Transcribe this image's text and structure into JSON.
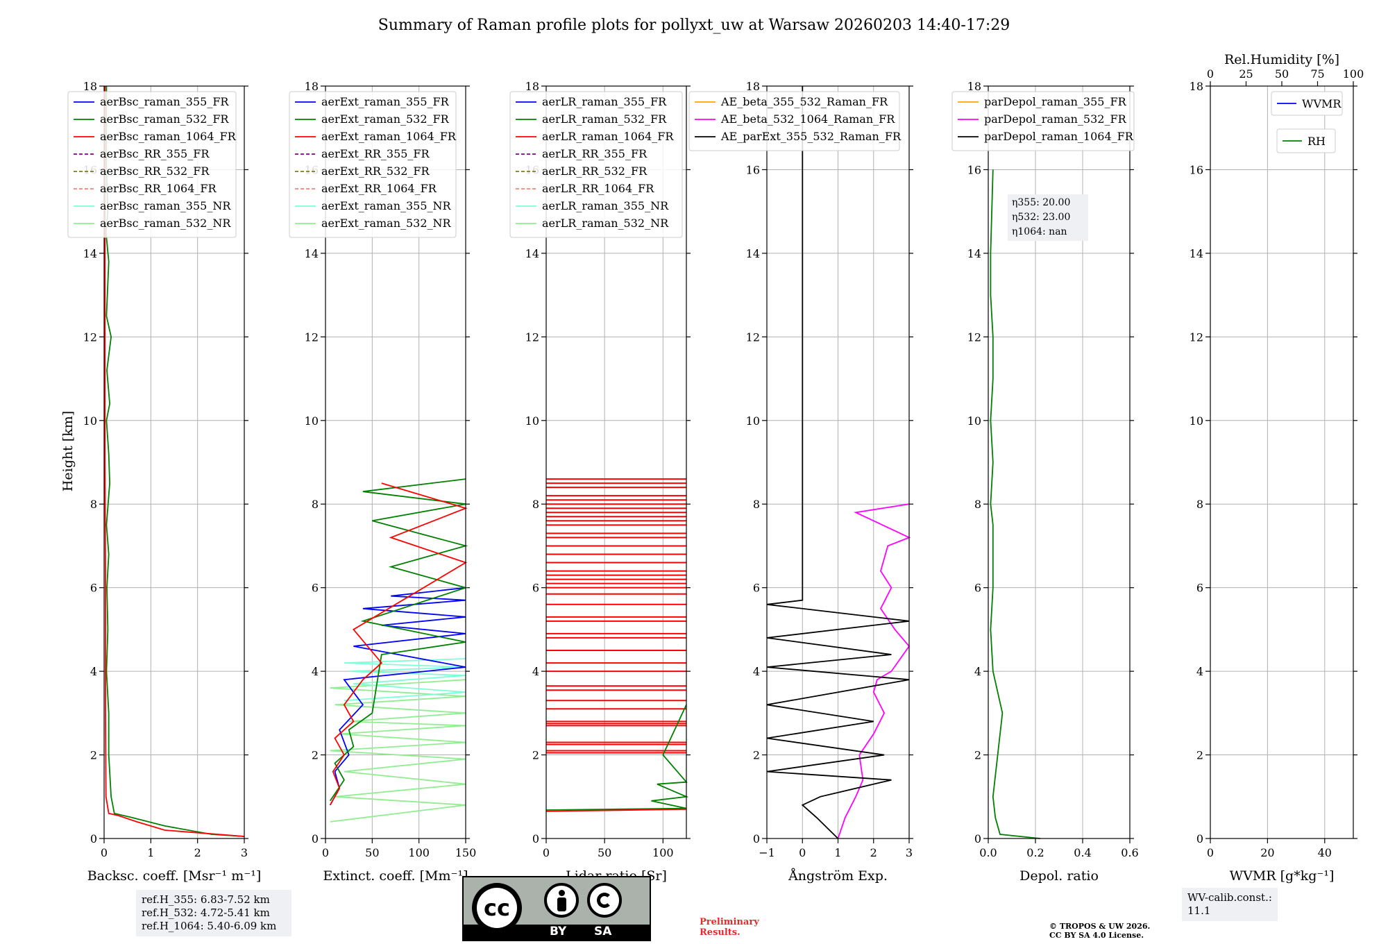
{
  "figure": {
    "title": "Summary of Raman profile plots for pollyxt_uw at Warsaw 20260203 14:40-17:29",
    "ylabel": "Height [km]",
    "height_ticks": [
      "0",
      "2",
      "4",
      "6",
      "8",
      "10",
      "12",
      "14",
      "16",
      "18"
    ]
  },
  "colors": {
    "blue": "#0000ff",
    "green": "#008000",
    "red": "#ff0000",
    "purple": "#800080",
    "olive": "#808000",
    "salmon": "#fa8072",
    "cyan": "#7fffd4",
    "lightgreen": "#90ee90",
    "orange": "#ffa500",
    "magenta": "#ff00ff",
    "black": "#000000",
    "darkgreen": "#006400"
  },
  "chart_data": [
    {
      "id": "backscatter",
      "type": "line",
      "xlabel": "Backsc. coeff. [Msr⁻¹ m⁻¹]",
      "xlim": [
        0,
        3
      ],
      "ylim": [
        0,
        18
      ],
      "xticks": [
        "0",
        "1",
        "2",
        "3"
      ],
      "legend": [
        "aerBsc_raman_355_FR",
        "aerBsc_raman_532_FR",
        "aerBsc_raman_1064_FR",
        "aerBsc_RR_355_FR",
        "aerBsc_RR_532_FR",
        "aerBsc_RR_1064_FR",
        "aerBsc_raman_355_NR",
        "aerBsc_raman_532_NR"
      ],
      "series": [
        {
          "name": "aerBsc_raman_532_FR",
          "color": "green",
          "x": [
            3.0,
            2.3,
            1.3,
            0.6,
            0.22,
            0.15,
            0.1,
            0.1,
            0.05,
            0.08,
            0.06,
            0.1,
            0.05,
            0.12,
            0.1,
            0.05,
            0.12,
            0.06,
            0.15,
            0.05,
            0.1,
            0.04,
            0.08,
            0.05,
            0.05
          ],
          "y": [
            0.05,
            0.1,
            0.3,
            0.5,
            0.6,
            1.0,
            2.0,
            3.0,
            4.0,
            5.0,
            6.0,
            6.8,
            7.5,
            8.5,
            9.2,
            10.0,
            10.4,
            11.2,
            12.0,
            12.5,
            13.8,
            14.5,
            15.0,
            16.0,
            18.0
          ]
        },
        {
          "name": "aerBsc_raman_1064_FR",
          "color": "red",
          "x": [
            3.0,
            1.3,
            0.7,
            0.3,
            0.1,
            0.04,
            0.03,
            0.03,
            0.02,
            0.02,
            0.02,
            0.02,
            0.02
          ],
          "y": [
            0.05,
            0.2,
            0.4,
            0.55,
            0.6,
            1.0,
            3.0,
            6.0,
            9.0,
            12.0,
            14.0,
            16.0,
            18.0
          ]
        }
      ],
      "annotation": [
        "ref.H_355: 6.83-7.52 km",
        "ref.H_532: 4.72-5.41 km",
        "ref.H_1064: 5.40-6.09 km"
      ]
    },
    {
      "id": "extinction",
      "type": "line",
      "xlabel": "Extinct. coeff. [Mm⁻¹]",
      "xlim": [
        0,
        150
      ],
      "ylim": [
        0,
        18
      ],
      "xticks": [
        "0",
        "50",
        "100",
        "150"
      ],
      "legend": [
        "aerExt_raman_355_FR",
        "aerExt_raman_532_FR",
        "aerExt_raman_1064_FR",
        "aerExt_RR_355_FR",
        "aerExt_RR_532_FR",
        "aerExt_RR_1064_FR",
        "aerExt_raman_355_NR",
        "aerExt_raman_532_NR"
      ],
      "series": [
        {
          "name": "aerExt_raman_532_NR",
          "color": "lightgreen",
          "x": [
            5,
            150,
            10,
            150,
            20,
            150,
            5,
            150,
            15,
            150,
            25,
            150,
            10,
            150,
            5,
            150
          ],
          "y": [
            0.4,
            0.8,
            1.0,
            1.3,
            1.6,
            1.9,
            2.1,
            2.3,
            2.5,
            2.7,
            2.8,
            3.0,
            3.2,
            3.4,
            3.6,
            3.8
          ]
        },
        {
          "name": "aerExt_raman_355_NR",
          "color": "cyan",
          "x": [
            20,
            150,
            30,
            150,
            25,
            150,
            20,
            150
          ],
          "y": [
            3.3,
            3.5,
            3.7,
            3.9,
            4.0,
            4.1,
            4.2,
            4.3
          ]
        },
        {
          "name": "aerExt_raman_355_FR",
          "color": "blue",
          "x": [
            5,
            15,
            10,
            25,
            15,
            40,
            20,
            150,
            30,
            150,
            60,
            150,
            40,
            150,
            70,
            150
          ],
          "y": [
            0.8,
            1.2,
            1.6,
            2.0,
            2.6,
            3.2,
            3.8,
            4.1,
            4.6,
            4.9,
            5.1,
            5.3,
            5.5,
            5.7,
            5.8,
            6.0
          ]
        },
        {
          "name": "aerExt_raman_532_FR",
          "color": "green",
          "x": [
            5,
            20,
            10,
            30,
            25,
            50,
            60,
            150,
            40,
            150,
            70,
            150,
            50,
            150,
            40,
            150
          ],
          "y": [
            0.9,
            1.4,
            1.8,
            2.2,
            2.6,
            3.0,
            4.4,
            4.7,
            5.2,
            6.0,
            6.5,
            7.0,
            7.6,
            8.0,
            8.3,
            8.6
          ]
        },
        {
          "name": "aerExt_raman_1064_FR",
          "color": "red",
          "x": [
            5,
            15,
            8,
            20,
            10,
            30,
            20,
            40,
            60,
            30,
            90,
            120,
            150,
            70,
            150,
            60
          ],
          "y": [
            0.8,
            1.2,
            1.6,
            2.0,
            2.4,
            2.8,
            3.2,
            3.8,
            4.2,
            5.0,
            5.8,
            6.2,
            6.6,
            7.2,
            7.9,
            8.5
          ]
        }
      ]
    },
    {
      "id": "lidar_ratio",
      "type": "line",
      "xlabel": "Lidar ratio [Sr]",
      "xlim": [
        0,
        120
      ],
      "ylim": [
        0,
        18
      ],
      "xticks": [
        "0",
        "50",
        "100"
      ],
      "legend": [
        "aerLR_raman_355_FR",
        "aerLR_raman_532_FR",
        "aerLR_raman_1064_FR",
        "aerLR_RR_355_FR",
        "aerLR_RR_532_FR",
        "aerLR_RR_1064_FR",
        "aerLR_raman_355_NR",
        "aerLR_raman_532_NR"
      ],
      "series": [
        {
          "name": "aerLR_raman_532_FR",
          "color": "green",
          "x": [
            0,
            120,
            90,
            120,
            95,
            120,
            100,
            120
          ],
          "y": [
            0.68,
            0.72,
            0.9,
            1.0,
            1.3,
            1.35,
            2.0,
            3.2
          ]
        },
        {
          "name": "aerLR_raman_1064_FR",
          "color": "red",
          "x": [
            0,
            120
          ],
          "y": [
            0.65,
            0.7
          ]
        }
      ],
      "red_lines_km": [
        2.05,
        2.1,
        2.25,
        2.3,
        2.7,
        2.75,
        2.8,
        3.1,
        3.3,
        3.55,
        3.65,
        4.0,
        4.2,
        4.5,
        4.8,
        4.9,
        5.2,
        5.3,
        5.6,
        5.85,
        6.0,
        6.1,
        6.2,
        6.3,
        6.4,
        6.6,
        6.8,
        7.0,
        7.2,
        7.3,
        7.5,
        7.6,
        7.7,
        7.8,
        7.9,
        8.0,
        8.1,
        8.2,
        8.4,
        8.5,
        8.6
      ]
    },
    {
      "id": "angstrom",
      "type": "line",
      "xlabel": "Ångström Exp.",
      "xlim": [
        -1,
        3
      ],
      "ylim": [
        0,
        18
      ],
      "xticks": [
        "−1",
        "0",
        "1",
        "2",
        "3"
      ],
      "legend": [
        "AE_beta_355_532_Raman_FR",
        "AE_beta_532_1064_Raman_FR",
        "AE_parExt_355_532_Raman_FR"
      ],
      "series": [
        {
          "name": "AE_beta_532_1064_Raman_FR",
          "color": "magenta",
          "x": [
            1.0,
            1.2,
            1.5,
            1.7,
            1.6,
            2.0,
            2.3,
            2.0,
            2.1,
            2.5,
            3.0,
            2.6,
            2.2,
            2.5,
            2.2,
            2.4,
            3.0,
            2.0,
            1.5,
            3.0
          ],
          "y": [
            0.0,
            0.5,
            1.0,
            1.4,
            2.0,
            2.5,
            3.0,
            3.5,
            3.8,
            4.0,
            4.6,
            5.0,
            5.5,
            6.0,
            6.4,
            7.0,
            7.2,
            7.6,
            7.8,
            8.0
          ]
        },
        {
          "name": "AE_parExt_355_532_Raman_FR",
          "color": "black",
          "x": [
            1.0,
            0.4,
            0.0,
            0.5,
            2.5,
            -1.0,
            2.3,
            -1.0,
            2.0,
            -1.0,
            3.0,
            -1.0,
            2.5,
            -1.0,
            3.0,
            -1.0,
            0.0,
            0.0,
            0.0
          ],
          "y": [
            0.0,
            0.5,
            0.8,
            1.0,
            1.4,
            1.6,
            2.0,
            2.4,
            2.8,
            3.2,
            3.8,
            4.1,
            4.4,
            4.8,
            5.2,
            5.6,
            5.7,
            8.8,
            18.0
          ]
        }
      ]
    },
    {
      "id": "depol",
      "type": "line",
      "xlabel": "Depol. ratio",
      "xlim": [
        0.0,
        0.6
      ],
      "ylim": [
        0,
        18
      ],
      "xticks": [
        "0.0",
        "0.2",
        "0.4",
        "0.6"
      ],
      "legend": [
        "parDepol_raman_355_FR",
        "parDepol_raman_532_FR",
        "parDepol_raman_1064_FR"
      ],
      "series": [
        {
          "name": "parDepol_raman_532_FR",
          "color": "green",
          "x": [
            0.22,
            0.05,
            0.03,
            0.02,
            0.04,
            0.06,
            0.04,
            0.02,
            0.01,
            0.02,
            0.02,
            0.02,
            0.01,
            0.02,
            0.01,
            0.02,
            0.02,
            0.01,
            0.01,
            0.02
          ],
          "y": [
            0.0,
            0.1,
            0.5,
            1.0,
            2.0,
            3.0,
            3.5,
            4.0,
            5.0,
            6.0,
            7.0,
            7.5,
            8.0,
            9.0,
            10.0,
            11.0,
            12.0,
            13.0,
            14.0,
            16.0
          ]
        }
      ],
      "annotation": [
        "η355: 20.00",
        "η532: 23.00",
        "η1064: nan"
      ]
    },
    {
      "id": "wvmr",
      "type": "line",
      "xlabel": "WVMR [g*kg⁻¹]",
      "xlim": [
        0,
        50
      ],
      "ylim": [
        0,
        18
      ],
      "xticks": [
        "0",
        "20",
        "40"
      ],
      "top_xlabel": "Rel.Humidity [%]",
      "top_xlim": [
        0,
        100
      ],
      "top_xticks": [
        "0",
        "25",
        "50",
        "75",
        "100"
      ],
      "legend": [
        "WVMR",
        "RH"
      ],
      "series": [],
      "annotation": [
        "WV-calib.const.: 11.1"
      ]
    }
  ],
  "footer": {
    "license_badge": {
      "cc": "cc",
      "by": "BY",
      "sa": "SA"
    },
    "preliminary": [
      "Preliminary",
      "Results."
    ],
    "copyright": [
      "© TROPOS & UW 2026.",
      "CC BY SA 4.0 License."
    ]
  }
}
